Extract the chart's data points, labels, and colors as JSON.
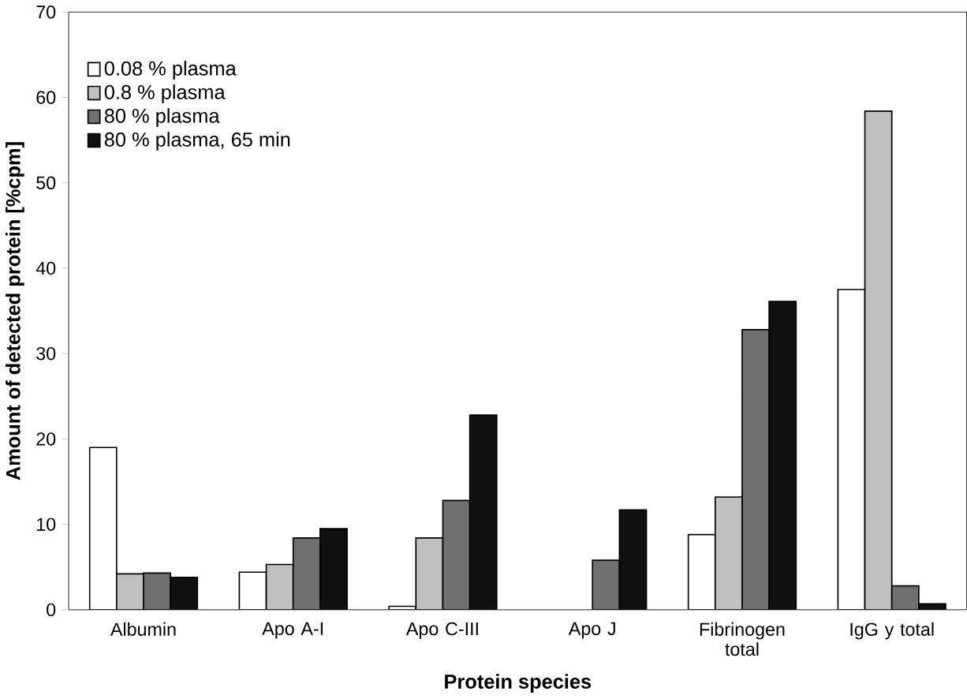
{
  "chart_data": {
    "type": "bar",
    "xlabel": "Protein species",
    "ylabel": "Amount of detected protein [%cpm]",
    "categories": [
      "Albumin",
      "Apo A-I",
      "Apo C-III",
      "Apo J",
      "Fibrinogen total",
      "IgG y total"
    ],
    "series": [
      {
        "name": "0.08 % plasma",
        "color": "#ffffff",
        "values": [
          19,
          4.4,
          0.4,
          null,
          8.8,
          37.5
        ]
      },
      {
        "name": "0.8 % plasma",
        "color": "#c0c0c0",
        "values": [
          4.2,
          5.3,
          8.4,
          null,
          13.2,
          58.4
        ]
      },
      {
        "name": "80 % plasma",
        "color": "#707070",
        "values": [
          4.3,
          8.4,
          12.8,
          5.8,
          32.8,
          2.8
        ]
      },
      {
        "name": "80 % plasma, 65 min",
        "color": "#101010",
        "values": [
          3.8,
          9.5,
          22.8,
          11.7,
          36.1,
          0.7
        ]
      }
    ],
    "ylim": [
      0,
      70
    ],
    "yticks": [
      0,
      10,
      20,
      30,
      40,
      50,
      60,
      70
    ],
    "legend": "top left",
    "grid": false
  }
}
